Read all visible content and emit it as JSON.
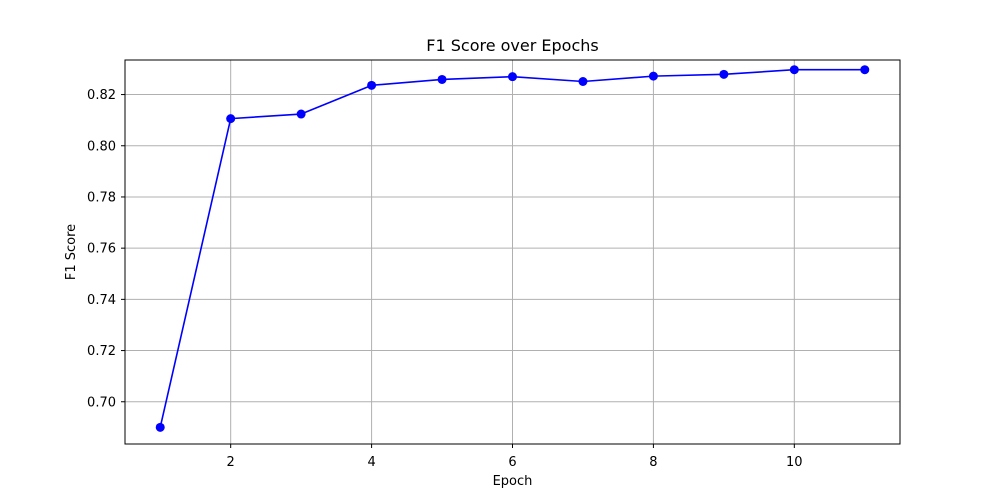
{
  "chart_data": {
    "type": "line",
    "title": "F1 Score over Epochs",
    "xlabel": "Epoch",
    "ylabel": "F1 Score",
    "xlim": [
      0.5,
      11.5
    ],
    "ylim": [
      0.6835,
      0.8335
    ],
    "x_ticks": [
      2,
      4,
      6,
      8,
      10
    ],
    "x_tick_labels": [
      "2",
      "4",
      "6",
      "8",
      "10"
    ],
    "y_ticks": [
      0.7,
      0.72,
      0.74,
      0.76,
      0.78,
      0.8,
      0.82
    ],
    "y_tick_labels": [
      "0.70",
      "0.72",
      "0.74",
      "0.76",
      "0.78",
      "0.80",
      "0.82"
    ],
    "grid": true,
    "series": [
      {
        "color": "#0000ff",
        "marker": "circle",
        "x": [
          1,
          2,
          3,
          4,
          5,
          6,
          7,
          8,
          9,
          10,
          11
        ],
        "y": [
          0.69,
          0.8106,
          0.8124,
          0.8236,
          0.8259,
          0.827,
          0.8251,
          0.8272,
          0.8279,
          0.8297,
          0.8297
        ]
      }
    ]
  }
}
